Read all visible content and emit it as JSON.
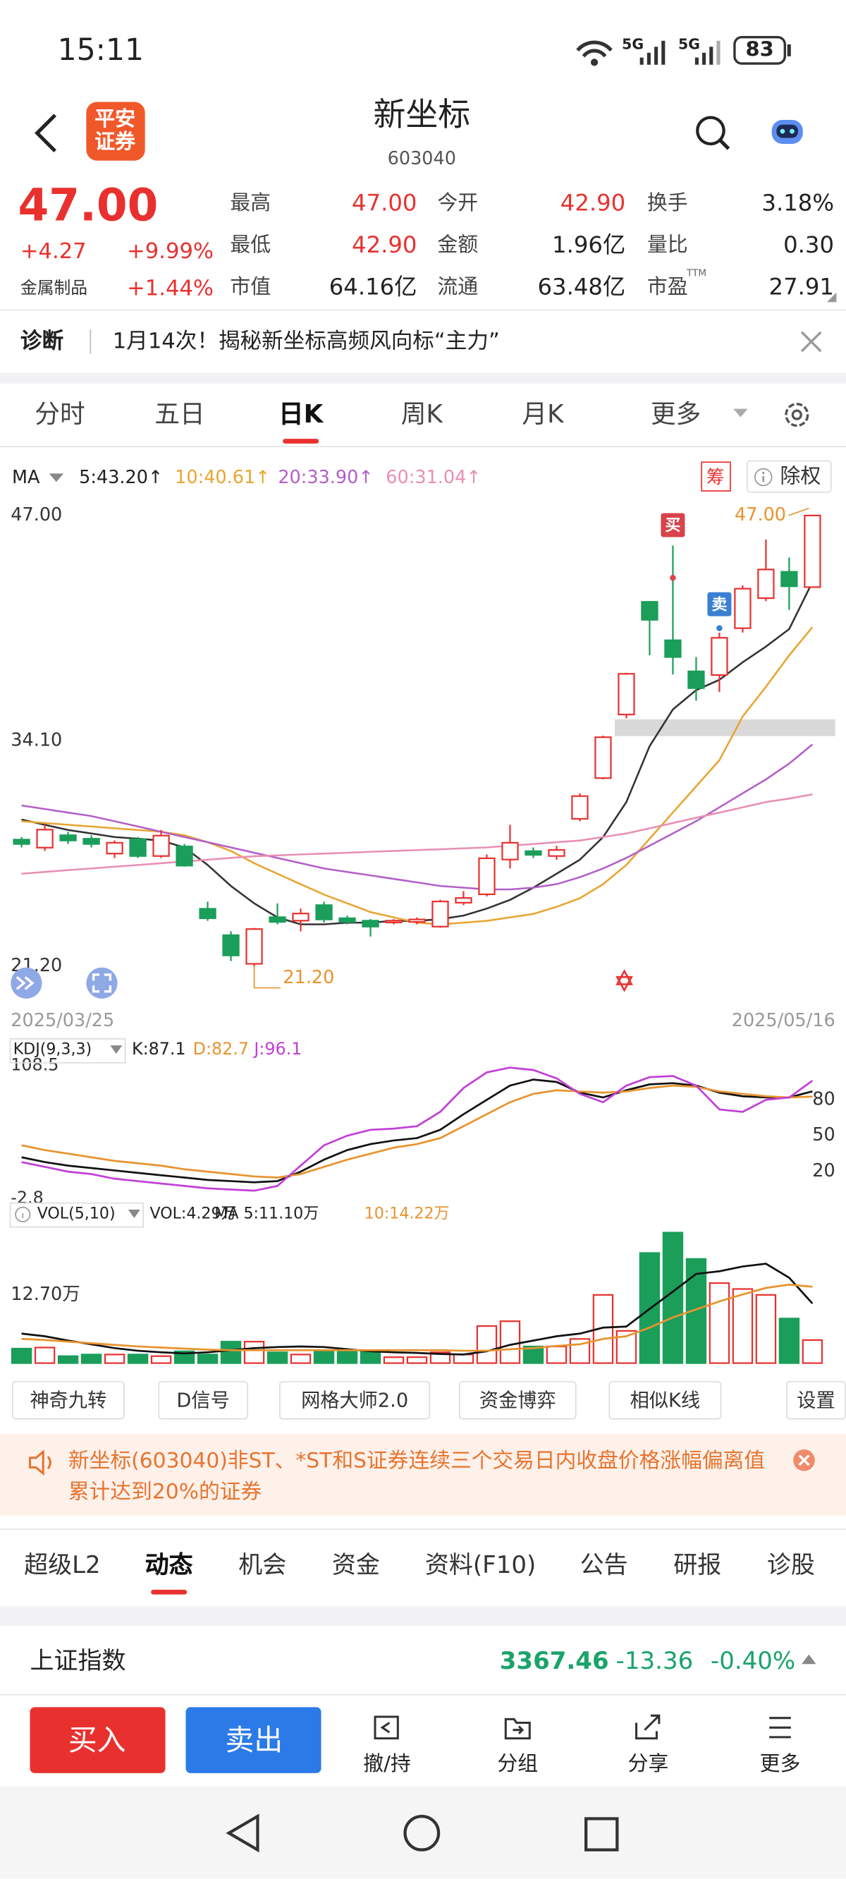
{
  "status": {
    "time": "15:11",
    "network": [
      "5G",
      "5G"
    ],
    "battery": "83"
  },
  "header": {
    "logo": [
      "平安",
      "证券"
    ],
    "title": "新坐标",
    "code": "603040"
  },
  "quote": {
    "price": "47.00",
    "change": "+4.27",
    "change_pct": "+9.99%",
    "sector": "金属制品",
    "sector_pct": "+1.44%",
    "stats": [
      [
        {
          "label": "最高",
          "value": "47.00",
          "color": "#e8312f"
        },
        {
          "label": "今开",
          "value": "42.90",
          "color": "#e8312f"
        },
        {
          "label": "换手",
          "value": "3.18%",
          "color": "#222222"
        }
      ],
      [
        {
          "label": "最低",
          "value": "42.90",
          "color": "#e8312f"
        },
        {
          "label": "金额",
          "value": "1.96亿",
          "color": "#222222"
        },
        {
          "label": "量比",
          "value": "0.30",
          "color": "#222222"
        }
      ],
      [
        {
          "label": "市值",
          "value": "64.16亿",
          "color": "#222222"
        },
        {
          "label": "流通",
          "value": "63.48亿",
          "color": "#222222"
        },
        {
          "label": "市盈",
          "value": "27.91",
          "color": "#222222",
          "sup": "TTM"
        }
      ]
    ]
  },
  "banner": {
    "tag": "诊断",
    "text": "1月14次！揭秘新坐标高频风向标“主力”"
  },
  "tabs": {
    "items": [
      "分时",
      "五日",
      "日K",
      "周K",
      "月K",
      "更多"
    ],
    "active": 2
  },
  "kline": {
    "ma_label": "MA",
    "ma": [
      {
        "text": "5:43.20↑",
        "color": "#222222"
      },
      {
        "text": "10:40.61↑",
        "color": "#e8a531"
      },
      {
        "text": "20:33.90↑",
        "color": "#b35fc8"
      },
      {
        "text": "60:31.04↑",
        "color": "#e88fb4"
      }
    ],
    "buttons": [
      "筹",
      "除权"
    ],
    "ylim": [
      21.2,
      47
    ],
    "yticks": [
      {
        "value": 47,
        "label": "47.00"
      },
      {
        "value": 34.1,
        "label": "34.10"
      },
      {
        "value": 21.2,
        "label": "21.20"
      }
    ],
    "up_color": "#e8312f",
    "down_color": "#1a9e5a",
    "candles": [
      [
        28.45,
        28.2,
        28.6,
        28.0
      ],
      [
        27.99,
        29.02,
        29.3,
        27.8
      ],
      [
        28.7,
        28.4,
        28.9,
        28.2
      ],
      [
        28.5,
        28.2,
        28.7,
        28.0
      ],
      [
        27.65,
        28.27,
        28.4,
        27.4
      ],
      [
        28.47,
        27.51,
        28.6,
        27.4
      ],
      [
        27.51,
        28.68,
        29.0,
        27.4
      ],
      [
        28.06,
        26.96,
        28.2,
        26.9
      ],
      [
        24.49,
        23.95,
        24.9,
        23.8
      ],
      [
        22.98,
        21.82,
        23.2,
        21.5
      ],
      [
        21.34,
        23.33,
        23.4,
        21.2
      ],
      [
        24.01,
        23.74,
        24.8,
        23.6
      ],
      [
        23.81,
        24.22,
        24.5,
        23.2
      ],
      [
        24.7,
        23.88,
        24.9,
        23.7
      ],
      [
        23.95,
        23.74,
        24.1,
        23.6
      ],
      [
        23.81,
        23.47,
        23.9,
        22.9
      ],
      [
        23.74,
        23.81,
        23.9,
        23.6
      ],
      [
        23.74,
        23.88,
        24.0,
        23.6
      ],
      [
        23.47,
        24.91,
        25.0,
        23.4
      ],
      [
        24.84,
        25.11,
        25.5,
        24.7
      ],
      [
        25.32,
        27.38,
        27.6,
        25.2
      ],
      [
        27.31,
        28.27,
        29.3,
        26.8
      ],
      [
        27.79,
        27.58,
        28.0,
        27.4
      ],
      [
        27.51,
        27.86,
        28.1,
        27.3
      ],
      [
        29.64,
        30.94,
        31.1,
        29.5
      ],
      [
        31.97,
        34.31,
        34.4,
        31.9
      ],
      [
        35.61,
        37.94,
        38.0,
        35.4
      ],
      [
        42.06,
        41.03,
        42.1,
        39.0
      ],
      [
        39.86,
        38.9,
        45.28,
        37.9
      ],
      [
        38.08,
        37.12,
        38.9,
        36.4
      ],
      [
        37.87,
        40.0,
        40.3,
        36.9
      ],
      [
        40.55,
        42.81,
        43.0,
        40.3
      ],
      [
        42.27,
        43.91,
        45.63,
        42.1
      ],
      [
        43.78,
        42.95,
        44.6,
        41.6
      ],
      [
        42.9,
        47.0,
        47.0,
        42.9
      ]
    ],
    "series": [
      {
        "color": "#333333",
        "values": [
          29.6,
          29.3,
          29.0,
          28.8,
          28.6,
          28.5,
          28.4,
          28.0,
          27.0,
          25.8,
          24.8,
          24.0,
          23.6,
          23.6,
          23.7,
          23.7,
          23.8,
          23.8,
          23.9,
          24.1,
          24.5,
          25.0,
          25.7,
          26.5,
          27.3,
          28.6,
          30.6,
          33.8,
          35.9,
          37.0,
          37.6,
          38.6,
          39.5,
          40.5,
          43.2
        ]
      },
      {
        "color": "#e8a531",
        "values": [
          29.5,
          29.4,
          29.3,
          29.2,
          29.1,
          29.0,
          28.9,
          28.7,
          28.3,
          27.8,
          27.1,
          26.5,
          25.9,
          25.3,
          24.8,
          24.3,
          24.0,
          23.7,
          23.6,
          23.7,
          23.8,
          24.0,
          24.2,
          24.6,
          25.1,
          25.9,
          27.0,
          28.5,
          30.0,
          31.5,
          33.0,
          35.5,
          37.2,
          39.0,
          40.61
        ]
      },
      {
        "color": "#b35fc8",
        "values": [
          30.4,
          30.2,
          30.0,
          29.8,
          29.5,
          29.2,
          28.9,
          28.6,
          28.3,
          28.0,
          27.7,
          27.4,
          27.1,
          26.8,
          26.6,
          26.4,
          26.2,
          26.0,
          25.8,
          25.7,
          25.6,
          25.6,
          25.7,
          25.9,
          26.3,
          26.8,
          27.4,
          28.1,
          28.8,
          29.5,
          30.3,
          31.1,
          31.9,
          32.8,
          33.9
        ]
      },
      {
        "color": "#e88fb4",
        "values": [
          26.5,
          26.6,
          26.7,
          26.8,
          26.9,
          27.0,
          27.1,
          27.2,
          27.3,
          27.4,
          27.5,
          27.55,
          27.6,
          27.65,
          27.7,
          27.75,
          27.8,
          27.85,
          27.9,
          27.95,
          28.0,
          28.1,
          28.2,
          28.3,
          28.4,
          28.6,
          28.8,
          29.1,
          29.4,
          29.7,
          30.0,
          30.3,
          30.6,
          30.8,
          31.04
        ]
      }
    ],
    "annotations": {
      "buy": "买",
      "sell": "卖",
      "high": "47.00",
      "low": "21.20"
    },
    "dates": [
      "2025/03/25",
      "2025/05/16"
    ]
  },
  "kdj": {
    "label": "KDJ(9,3,3)",
    "legend": [
      {
        "text": "K:87.1",
        "color": "#222222"
      },
      {
        "text": "D:82.7",
        "color": "#e8932f"
      },
      {
        "text": "J:96.1",
        "color": "#c13fd6"
      }
    ],
    "ylim": [
      -2.8,
      108.5
    ],
    "yticks": [
      108.5,
      -2.8
    ],
    "y2ticks": [
      80,
      50,
      20
    ],
    "series": [
      {
        "color": "#111111",
        "values": [
          32,
          28,
          25,
          23,
          21,
          19,
          17,
          15,
          13,
          12,
          11,
          12,
          20,
          30,
          38,
          43,
          46,
          48,
          55,
          68,
          80,
          92,
          97,
          95,
          86,
          82,
          88,
          93,
          94,
          92,
          86,
          83,
          82,
          82,
          87.1
        ]
      },
      {
        "color": "#e8932f",
        "values": [
          42,
          38,
          35,
          32,
          29,
          27,
          25,
          22,
          20,
          18,
          16,
          15,
          18,
          24,
          30,
          35,
          40,
          43,
          48,
          58,
          68,
          78,
          85,
          88,
          87,
          86,
          87,
          90,
          92,
          91,
          87,
          85,
          83,
          82,
          82.7
        ]
      },
      {
        "color": "#c13fd6",
        "values": [
          28,
          24,
          20,
          18,
          14,
          12,
          10,
          8,
          6,
          5,
          4,
          8,
          25,
          42,
          50,
          55,
          56,
          58,
          70,
          90,
          103,
          107,
          105,
          98,
          85,
          78,
          92,
          99,
          100,
          92,
          72,
          70,
          80,
          82,
          96.1
        ]
      }
    ]
  },
  "vol": {
    "label": "VOL(5,10)",
    "legend": [
      {
        "text": "VOL:4.29万",
        "color": "#222222"
      },
      {
        "text": "MA 5:11.10万",
        "color": "#222222"
      },
      {
        "text": "10:14.22万",
        "color": "#e8932f"
      }
    ],
    "ylim": [
      0,
      25
    ],
    "yticks": [
      {
        "value": 12.7,
        "label": "12.70万"
      }
    ],
    "values": [
      2.7,
      2.9,
      1.3,
      1.6,
      1.6,
      1.6,
      1.3,
      2.2,
      1.6,
      4.0,
      4.0,
      2.0,
      1.6,
      2.2,
      2.2,
      2.2,
      1.1,
      1.1,
      2.0,
      1.6,
      6.9,
      7.8,
      3.1,
      3.1,
      4.5,
      12.7,
      6.0,
      20.5,
      24.3,
      19.4,
      14.9,
      13.8,
      12.7,
      8.3,
      4.29
    ],
    "series": [
      {
        "color": "#111111",
        "values": [
          5.5,
          5.0,
          4.2,
          3.5,
          2.8,
          2.3,
          2.0,
          1.8,
          2.0,
          2.4,
          2.8,
          3.0,
          3.1,
          3.0,
          2.6,
          2.2,
          2.0,
          1.9,
          1.7,
          1.6,
          2.2,
          3.4,
          4.2,
          5.0,
          5.5,
          6.6,
          6.8,
          10.1,
          13.3,
          16.6,
          17.1,
          18.0,
          18.5,
          15.9,
          11.1
        ]
      },
      {
        "color": "#e8932f",
        "values": [
          4.5,
          4.3,
          4.0,
          3.7,
          3.4,
          3.1,
          2.9,
          2.7,
          2.5,
          2.4,
          2.4,
          2.4,
          2.4,
          2.4,
          2.4,
          2.4,
          2.4,
          2.4,
          2.4,
          2.3,
          2.3,
          2.6,
          2.8,
          3.2,
          3.5,
          4.5,
          5.0,
          6.6,
          8.5,
          10.0,
          11.5,
          12.8,
          14.0,
          14.6,
          14.22
        ]
      }
    ]
  },
  "tools": [
    "神奇九转",
    "D信号",
    "网格大师2.0",
    "资金博弈",
    "相似K线",
    "设置"
  ],
  "notice": "新坐标(603040)非ST、*ST和S证券连续三个交易日内收盘价格涨幅偏离值累计达到20%的证券",
  "subtabs": {
    "items": [
      "超级L2",
      "动态",
      "机会",
      "资金",
      "资料(F10)",
      "公告",
      "研报",
      "诊股"
    ],
    "active": 1
  },
  "index": {
    "name": "上证指数",
    "value": "3367.46",
    "change": "-13.36",
    "change_pct": "-0.40%"
  },
  "actions": {
    "buy": "买入",
    "sell": "卖出",
    "items": [
      "撤/持",
      "分组",
      "分享",
      "更多"
    ]
  }
}
